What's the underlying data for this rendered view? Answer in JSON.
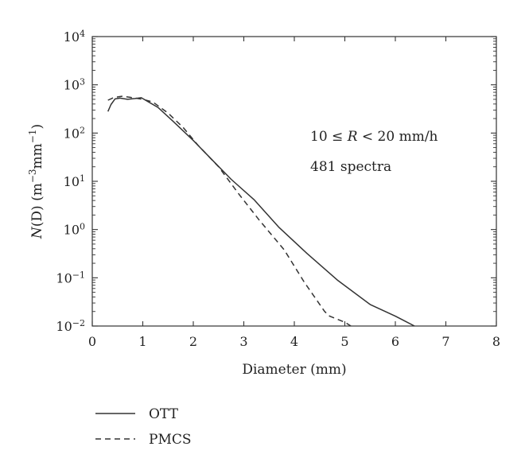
{
  "chart_data": {
    "type": "line",
    "xlabel": "Diameter (mm)",
    "ylabel_parts": {
      "n": "N",
      "d": "(D)",
      "unit_open": " (m",
      "exp1": "−3",
      "mid": "mm",
      "exp2": "−1",
      "unit_close": ")"
    },
    "xlim": [
      0,
      8
    ],
    "ylim": [
      0.01,
      10000
    ],
    "yscale": "log",
    "grid": false,
    "x_ticks": [
      {
        "value": 0,
        "label": "0"
      },
      {
        "value": 1,
        "label": "1"
      },
      {
        "value": 2,
        "label": "2"
      },
      {
        "value": 3,
        "label": "3"
      },
      {
        "value": 4,
        "label": "4"
      },
      {
        "value": 5,
        "label": "5"
      },
      {
        "value": 6,
        "label": "6"
      },
      {
        "value": 7,
        "label": "7"
      },
      {
        "value": 8,
        "label": "8"
      }
    ],
    "y_ticks": [
      {
        "value": 0.01,
        "base": "10",
        "exp": "−2"
      },
      {
        "value": 0.1,
        "base": "10",
        "exp": "−1"
      },
      {
        "value": 1,
        "base": "10",
        "exp": "0"
      },
      {
        "value": 10,
        "base": "10",
        "exp": "1"
      },
      {
        "value": 100,
        "base": "10",
        "exp": "2"
      },
      {
        "value": 1000,
        "base": "10",
        "exp": "3"
      },
      {
        "value": 10000,
        "base": "10",
        "exp": "4"
      }
    ],
    "annotations": [
      {
        "id": "rain-rate",
        "parts": [
          "10 ≤ ",
          "R",
          " < 20 mm/h"
        ]
      },
      {
        "id": "spectra-count",
        "text": "481 spectra"
      }
    ],
    "legend_position": "bottom-left-below-plot",
    "series": [
      {
        "name": "OTT",
        "style": "solid",
        "color": "#333333",
        "x": [
          0.31,
          0.37,
          0.45,
          0.55,
          0.7,
          0.85,
          0.97,
          1.1,
          1.3,
          1.6,
          2.0,
          2.4,
          2.75,
          3.2,
          3.7,
          4.25,
          4.85,
          5.5,
          6.0,
          6.38
        ],
        "y": [
          280,
          390,
          510,
          530,
          500,
          520,
          540,
          450,
          340,
          175,
          70,
          26,
          11,
          4.2,
          1.1,
          0.32,
          0.09,
          0.028,
          0.016,
          0.01
        ]
      },
      {
        "name": "PMCS",
        "style": "dashed",
        "color": "#333333",
        "x": [
          0.31,
          0.4,
          0.5,
          0.6,
          0.75,
          0.9,
          1.0,
          1.2,
          1.5,
          1.8,
          2.1,
          2.5,
          2.9,
          3.3,
          3.8,
          4.2,
          4.6,
          4.7,
          5.0,
          5.12
        ],
        "y": [
          480,
          530,
          560,
          580,
          550,
          520,
          500,
          440,
          260,
          130,
          55,
          20,
          5.5,
          1.6,
          0.38,
          0.08,
          0.02,
          0.016,
          0.012,
          0.01
        ]
      }
    ]
  }
}
